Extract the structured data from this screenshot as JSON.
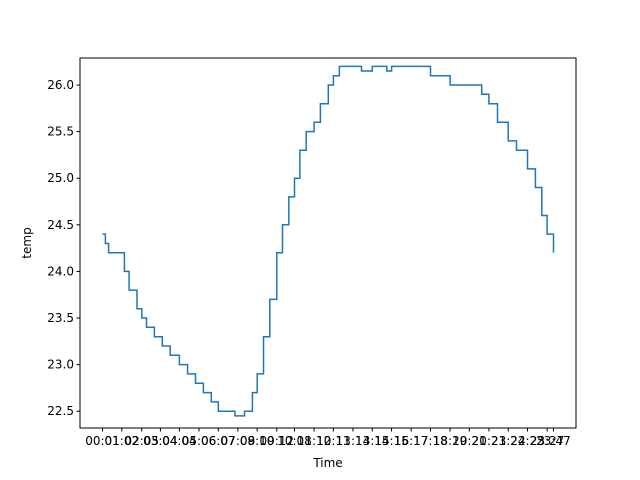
{
  "chart_data": {
    "type": "line",
    "title": "",
    "xlabel": "Time",
    "ylabel": "temp",
    "ylim": [
      22.32,
      26.29
    ],
    "yticks": [
      22.5,
      23.0,
      23.5,
      24.0,
      24.5,
      25.0,
      25.5,
      26.0
    ],
    "ytick_labels": [
      "22.5",
      "23.0",
      "23.5",
      "24.0",
      "24.5",
      "25.0",
      "25.5",
      "26.0"
    ],
    "xticks_note": "overlapping time tick labels from 00:01 to 23:47",
    "xtick_labels": [
      "00:01",
      "01:02",
      "02:05",
      "03:04",
      "04:04",
      "05:06",
      "06:07",
      "07:09",
      "08:10",
      "09:12",
      "10:08",
      "11:10",
      "12:11",
      "13:13",
      "14:14",
      "15:15",
      "16:17",
      "17:18",
      "18:20",
      "19:21",
      "20:23",
      "21:24",
      "22:25",
      "23:27",
      "23:47"
    ],
    "series": [
      {
        "color": "#1f77b4",
        "x": [
          "00:01",
          "00:10",
          "00:20",
          "00:45",
          "01:10",
          "01:25",
          "01:50",
          "02:05",
          "02:20",
          "02:45",
          "03:10",
          "03:35",
          "04:04",
          "04:30",
          "04:55",
          "05:20",
          "05:45",
          "06:07",
          "06:30",
          "07:00",
          "07:20",
          "07:30",
          "07:40",
          "07:55",
          "08:10",
          "08:30",
          "08:50",
          "09:12",
          "09:30",
          "09:50",
          "10:08",
          "10:25",
          "10:45",
          "11:10",
          "11:30",
          "11:55",
          "12:11",
          "12:30",
          "12:50",
          "13:13",
          "13:40",
          "14:14",
          "15:00",
          "15:15",
          "16:17",
          "17:18",
          "18:20",
          "19:21",
          "20:00",
          "20:23",
          "20:50",
          "21:24",
          "21:50",
          "22:25",
          "22:50",
          "23:10",
          "23:27",
          "23:47"
        ],
        "values": [
          24.4,
          24.3,
          24.2,
          24.2,
          24.0,
          23.8,
          23.6,
          23.5,
          23.4,
          23.3,
          23.2,
          23.1,
          23.0,
          22.9,
          22.8,
          22.7,
          22.6,
          22.5,
          22.5,
          22.45,
          22.45,
          22.5,
          22.5,
          22.7,
          22.9,
          23.3,
          23.7,
          24.2,
          24.5,
          24.8,
          25.0,
          25.3,
          25.5,
          25.6,
          25.8,
          26.0,
          26.1,
          26.2,
          26.2,
          26.2,
          26.15,
          26.2,
          26.15,
          26.2,
          26.2,
          26.1,
          26.0,
          26.0,
          25.9,
          25.8,
          25.6,
          25.4,
          25.3,
          25.1,
          24.9,
          24.6,
          24.4,
          24.2
        ]
      }
    ],
    "grid": false,
    "legend": "none"
  }
}
